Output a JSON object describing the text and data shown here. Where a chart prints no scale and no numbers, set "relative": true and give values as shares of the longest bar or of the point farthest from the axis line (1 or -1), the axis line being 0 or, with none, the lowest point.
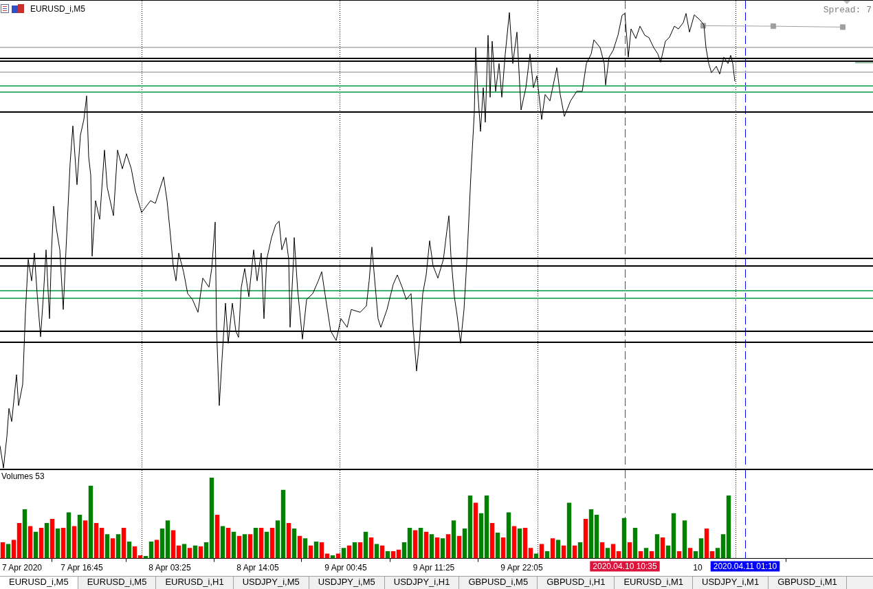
{
  "chart_data": [
    {
      "type": "line",
      "title": "EURUSD_i,M5",
      "relative": true,
      "xlim": [
        "2020-04-07T06:50",
        "2020-04-11T16:40"
      ],
      "tick_labels": false,
      "annotations": [
        "Spread: 7"
      ],
      "x": [
        "2020-04-07T06:50",
        "2020-04-07T07:15",
        "2020-04-07T07:40",
        "2020-04-07T07:55",
        "2020-04-07T08:15",
        "2020-04-07T08:50",
        "2020-04-07T09:05",
        "2020-04-07T09:35",
        "2020-04-07T09:55",
        "2020-04-07T10:15",
        "2020-04-07T10:40",
        "2020-04-07T11:00",
        "2020-04-07T11:20",
        "2020-04-07T11:45",
        "2020-04-07T12:05",
        "2020-04-07T12:25",
        "2020-04-07T12:50",
        "2020-04-07T13:05",
        "2020-04-07T13:20",
        "2020-04-07T13:40",
        "2020-04-07T14:05",
        "2020-04-07T14:30",
        "2020-04-07T14:50",
        "2020-04-07T15:20",
        "2020-04-07T15:40",
        "2020-04-07T16:10",
        "2020-04-07T16:35",
        "2020-04-07T17:00",
        "2020-04-07T17:20",
        "2020-04-07T17:35",
        "2020-04-07T17:50",
        "2020-04-07T18:00",
        "2020-04-07T18:25",
        "2020-04-07T18:55",
        "2020-04-07T19:30",
        "2020-04-07T19:50",
        "2020-04-07T20:35",
        "2020-04-07T21:05",
        "2020-04-07T21:40",
        "2020-04-07T22:10",
        "2020-04-07T22:45",
        "2020-04-07T23:15",
        "2020-04-08T00:00",
        "2020-04-08T00:35",
        "2020-04-08T01:05",
        "2020-04-08T01:40",
        "2020-04-08T02:40",
        "2020-04-08T03:05",
        "2020-04-08T03:25",
        "2020-04-08T03:50",
        "2020-04-08T04:10",
        "2020-04-08T04:30",
        "2020-04-08T05:05",
        "2020-04-08T05:35",
        "2020-04-08T06:10",
        "2020-04-08T06:50",
        "2020-04-08T07:25",
        "2020-04-08T08:10",
        "2020-04-08T08:30",
        "2020-04-08T08:55",
        "2020-04-08T09:05",
        "2020-04-08T09:25",
        "2020-04-08T09:45",
        "2020-04-08T10:10",
        "2020-04-08T10:30",
        "2020-04-08T11:00",
        "2020-04-08T11:25",
        "2020-04-08T11:45",
        "2020-04-08T12:05",
        "2020-04-08T12:30",
        "2020-04-08T13:00",
        "2020-04-08T13:35",
        "2020-04-08T14:00",
        "2020-04-08T14:30",
        "2020-04-08T14:50",
        "2020-04-08T15:10",
        "2020-04-08T15:45",
        "2020-04-08T16:15",
        "2020-04-08T16:40",
        "2020-04-08T17:00",
        "2020-04-08T17:30",
        "2020-04-08T17:50",
        "2020-04-08T18:00",
        "2020-04-08T18:25",
        "2020-04-08T18:30",
        "2020-04-08T18:55",
        "2020-04-08T19:30",
        "2020-04-08T20:00",
        "2020-04-08T20:45",
        "2020-04-08T21:25",
        "2020-04-08T21:50",
        "2020-04-08T22:20",
        "2020-04-08T22:55",
        "2020-04-08T23:35",
        "2020-04-09T00:10",
        "2020-04-09T00:55",
        "2020-04-09T01:25",
        "2020-04-09T02:30",
        "2020-04-09T03:15",
        "2020-04-09T03:35",
        "2020-04-09T03:55",
        "2020-04-09T04:20",
        "2020-04-09T04:40",
        "2020-04-09T05:00",
        "2020-04-09T05:45",
        "2020-04-09T06:30",
        "2020-04-09T07:00",
        "2020-04-09T07:35",
        "2020-04-09T08:05",
        "2020-04-09T08:40",
        "2020-04-09T08:55",
        "2020-04-09T09:20",
        "2020-04-09T09:40",
        "2020-04-09T10:05",
        "2020-04-09T10:30",
        "2020-04-09T10:55",
        "2020-04-09T11:20",
        "2020-04-09T11:55",
        "2020-04-09T12:35",
        "2020-04-09T13:00",
        "2020-04-09T13:15",
        "2020-04-09T13:30",
        "2020-04-09T13:55",
        "2020-04-09T14:15",
        "2020-04-09T14:40",
        "2020-04-09T15:05",
        "2020-04-09T15:30",
        "2020-04-09T15:55",
        "2020-04-09T16:05",
        "2020-04-09T16:20",
        "2020-04-09T16:30",
        "2020-04-09T16:45",
        "2020-04-09T17:05",
        "2020-04-09T17:25",
        "2020-04-09T17:40",
        "2020-04-09T18:00",
        "2020-04-09T18:15",
        "2020-04-09T18:30",
        "2020-04-09T18:55",
        "2020-04-09T19:20",
        "2020-04-09T19:40",
        "2020-04-09T20:05",
        "2020-04-09T20:35",
        "2020-04-09T21:00",
        "2020-04-09T21:30",
        "2020-04-09T22:00",
        "2020-04-09T22:35",
        "2020-04-09T23:05",
        "2020-04-09T23:30",
        "2020-04-09T23:55",
        "2020-04-10T00:30",
        "2020-04-10T00:55",
        "2020-04-10T01:30",
        "2020-04-10T01:50",
        "2020-04-10T02:20",
        "2020-04-10T02:45",
        "2020-04-10T03:15",
        "2020-04-10T04:00",
        "2020-04-10T04:45",
        "2020-04-10T05:25",
        "2020-04-10T05:55",
        "2020-04-10T06:30",
        "2020-04-10T06:50",
        "2020-04-10T07:35",
        "2020-04-10T08:05",
        "2020-04-10T08:15",
        "2020-04-10T08:40",
        "2020-04-10T09:10",
        "2020-04-10T09:45",
        "2020-04-10T10:15",
        "2020-04-10T10:35",
        "2020-04-10T11:00",
        "2020-04-10T11:20",
        "2020-04-10T11:55",
        "2020-04-10T12:25",
        "2020-04-10T13:00",
        "2020-04-10T13:30",
        "2020-04-10T14:05",
        "2020-04-10T14:35",
        "2020-04-10T14:55",
        "2020-04-10T15:30",
        "2020-04-10T16:00",
        "2020-04-10T16:35",
        "2020-04-10T17:05",
        "2020-04-10T17:40",
        "2020-04-10T18:00",
        "2020-04-10T18:25",
        "2020-04-10T19:00",
        "2020-04-10T19:40",
        "2020-04-10T20:10",
        "2020-04-10T20:25",
        "2020-04-10T20:45",
        "2020-04-10T21:05",
        "2020-04-10T21:40",
        "2020-04-10T22:05",
        "2020-04-10T22:35",
        "2020-04-10T23:05",
        "2020-04-10T23:25",
        "2020-04-10T23:40",
        "2020-04-10T23:55"
      ],
      "series": [
        {
          "color": "#000000",
          "values": [
            0.049,
            0,
            0.069,
            0.131,
            0.102,
            0.205,
            0.137,
            0.184,
            0.342,
            0.458,
            0.411,
            0.472,
            0.383,
            0.288,
            0.376,
            0.479,
            0.328,
            0.479,
            0.575,
            0.526,
            0.479,
            0.348,
            0.479,
            0.669,
            0.751,
            0.622,
            0.731,
            0.765,
            0.817,
            0.683,
            0.643,
            0.465,
            0.587,
            0.546,
            0.698,
            0.616,
            0.554,
            0.698,
            0.657,
            0.69,
            0.657,
            0.608,
            0.561,
            0.575,
            0.587,
            0.581,
            0.639,
            0.587,
            0.526,
            0.444,
            0.411,
            0.472,
            0.431,
            0.383,
            0.37,
            0.342,
            0.417,
            0.397,
            0.438,
            0.54,
            0.309,
            0.137,
            0.239,
            0.362,
            0.274,
            0.362,
            0.301,
            0.287,
            0.397,
            0.438,
            0.376,
            0.479,
            0.411,
            0.472,
            0.328,
            0.458,
            0.506,
            0.534,
            0.542,
            0.479,
            0.506,
            0.458,
            0.309,
            0.458,
            0.506,
            0.391,
            0.283,
            0.37,
            0.383,
            0.411,
            0.431,
            0.37,
            0.301,
            0.28,
            0.328,
            0.309,
            0.348,
            0.342,
            0.356,
            0.411,
            0.485,
            0.397,
            0.328,
            0.309,
            0.348,
            0.403,
            0.424,
            0.397,
            0.37,
            0.383,
            0.309,
            0.213,
            0.274,
            0.383,
            0.424,
            0.499,
            0.444,
            0.417,
            0.458,
            0.52,
            0.554,
            0.465,
            0.376,
            0.335,
            0.274,
            0.348,
            0.479,
            0.643,
            0.698,
            0.78,
            0.923,
            0.827,
            0.739,
            0.835,
            0.759,
            0.95,
            0.814,
            0.937,
            0.827,
            0.888,
            0.814,
            0.909,
            1,
            0.888,
            0.957,
            0.786,
            0.835,
            0.909,
            0.835,
            0.861,
            0.765,
            0.82,
            0.806,
            0.835,
            0.879,
            0.82,
            0.772,
            0.806,
            0.827,
            0.827,
            0.888,
            0.909,
            0.94,
            0.923,
            0.888,
            0.841,
            0.902,
            0.917,
            0.95,
            0.994,
            0.998,
            0.902,
            0.964,
            0.943,
            0.97,
            0.95,
            0.945,
            0.923,
            0.909,
            0.891,
            0.937,
            0.946,
            0.97,
            0.964,
            0.978,
            0.998,
            0.957,
            0.995,
            0.984,
            0.973,
            0.923,
            0.888,
            0.868,
            0.882,
            0.865,
            0.902,
            0.888,
            0.906,
            0.888,
            0.849
          ]
        },
        {
          "color": "#a0a0a0",
          "marker": "square",
          "x": [
            "2020-04-10T20:05",
            "2020-04-11T04:35",
            "2020-04-11T13:00"
          ],
          "values": [
            0.971,
            0.97,
            0.968
          ]
        },
        {
          "color": "#207a48",
          "x": [
            "2020-04-11T14:30",
            "2020-04-11T16:40"
          ],
          "values": [
            0.89,
            0.89
          ]
        }
      ],
      "ref_lines": [
        {
          "axis": "x",
          "value": "2020-04-08T00:00",
          "color": "#000000",
          "line_style": "dotted"
        },
        {
          "axis": "x",
          "value": "2020-04-09T00:00",
          "color": "#000000",
          "line_style": "dotted"
        },
        {
          "axis": "x",
          "value": "2020-04-10T00:00",
          "color": "#000000",
          "line_style": "dotted"
        },
        {
          "axis": "x",
          "value": "2020-04-11T00:00",
          "color": "#000000",
          "line_style": "dotted"
        },
        {
          "axis": "x",
          "value": "2020-04-10T10:35",
          "color": "#dc143c",
          "line_style": "dashed"
        },
        {
          "axis": "x",
          "value": "2020-04-11T01:10",
          "color": "#0000ff",
          "line_style": "dashed"
        },
        {
          "axis": "y",
          "value": 0.924,
          "color": "#c0c0c0"
        },
        {
          "axis": "y",
          "value": 0.9,
          "color": "#000000"
        },
        {
          "axis": "y",
          "value": 0.893,
          "color": "#000000"
        },
        {
          "axis": "y",
          "value": 0.869,
          "color": "#c0c0c0"
        },
        {
          "axis": "y",
          "value": 0.839,
          "color": "#3cb371"
        },
        {
          "axis": "y",
          "value": 0.825,
          "color": "#3cb371"
        },
        {
          "axis": "y",
          "value": 0.782,
          "color": "#000000"
        },
        {
          "axis": "y",
          "value": 0.46,
          "color": "#000000"
        },
        {
          "axis": "y",
          "value": 0.444,
          "color": "#000000"
        },
        {
          "axis": "y",
          "value": 0.39,
          "color": "#3cb371"
        },
        {
          "axis": "y",
          "value": 0.372,
          "color": "#3cb371"
        },
        {
          "axis": "y",
          "value": 0.3,
          "color": "#000000"
        },
        {
          "axis": "y",
          "value": 0.276,
          "color": "#000000"
        }
      ]
    },
    {
      "type": "bar",
      "title": "Volumes 53",
      "relative": true,
      "xlim": [
        "2020-04-07T06:50",
        "2020-04-11T16:40"
      ],
      "tick_labels": "x",
      "xticks": [
        {
          "value": "2020-04-07T09:30",
          "label": "7 Apr 2020"
        },
        {
          "value": "2020-04-07T16:45",
          "label": "7 Apr 16:45"
        },
        {
          "value": "2020-04-08T03:25",
          "label": "8 Apr 03:25"
        },
        {
          "value": "2020-04-08T14:05",
          "label": "8 Apr 14:05"
        },
        {
          "value": "2020-04-09T00:45",
          "label": "9 Apr 00:45"
        },
        {
          "value": "2020-04-09T11:25",
          "label": "9 Apr 11:25"
        },
        {
          "value": "2020-04-09T22:05",
          "label": "9 Apr 22:05"
        },
        {
          "value": "2020-04-10T19:25",
          "label": "10"
        }
      ],
      "x": [
        "2020-04-07T07:10",
        "2020-04-07T07:50",
        "2020-04-07T08:30",
        "2020-04-07T09:10",
        "2020-04-07T09:50",
        "2020-04-07T10:30",
        "2020-04-07T11:10",
        "2020-04-07T11:50",
        "2020-04-07T12:30",
        "2020-04-07T13:10",
        "2020-04-07T13:50",
        "2020-04-07T14:30",
        "2020-04-07T15:10",
        "2020-04-07T15:50",
        "2020-04-07T16:30",
        "2020-04-07T17:10",
        "2020-04-07T17:50",
        "2020-04-07T18:30",
        "2020-04-07T19:10",
        "2020-04-07T19:50",
        "2020-04-07T20:30",
        "2020-04-07T21:10",
        "2020-04-07T21:50",
        "2020-04-07T22:30",
        "2020-04-07T23:10",
        "2020-04-07T23:50",
        "2020-04-08T00:30",
        "2020-04-08T01:10",
        "2020-04-08T01:50",
        "2020-04-08T02:30",
        "2020-04-08T03:10",
        "2020-04-08T03:50",
        "2020-04-08T04:30",
        "2020-04-08T05:10",
        "2020-04-08T05:50",
        "2020-04-08T06:30",
        "2020-04-08T07:10",
        "2020-04-08T07:50",
        "2020-04-08T08:30",
        "2020-04-08T09:10",
        "2020-04-08T09:50",
        "2020-04-08T10:30",
        "2020-04-08T11:10",
        "2020-04-08T11:50",
        "2020-04-08T12:30",
        "2020-04-08T13:10",
        "2020-04-08T13:50",
        "2020-04-08T14:30",
        "2020-04-08T15:10",
        "2020-04-08T15:50",
        "2020-04-08T16:30",
        "2020-04-08T17:10",
        "2020-04-08T17:50",
        "2020-04-08T18:30",
        "2020-04-08T19:10",
        "2020-04-08T19:50",
        "2020-04-08T20:30",
        "2020-04-08T21:10",
        "2020-04-08T21:50",
        "2020-04-08T22:30",
        "2020-04-08T23:10",
        "2020-04-08T23:50",
        "2020-04-09T00:30",
        "2020-04-09T01:10",
        "2020-04-09T01:50",
        "2020-04-09T02:30",
        "2020-04-09T03:10",
        "2020-04-09T03:50",
        "2020-04-09T04:30",
        "2020-04-09T05:10",
        "2020-04-09T05:50",
        "2020-04-09T06:30",
        "2020-04-09T07:10",
        "2020-04-09T07:50",
        "2020-04-09T08:30",
        "2020-04-09T09:10",
        "2020-04-09T09:50",
        "2020-04-09T10:30",
        "2020-04-09T11:10",
        "2020-04-09T11:50",
        "2020-04-09T12:30",
        "2020-04-09T13:10",
        "2020-04-09T13:50",
        "2020-04-09T14:30",
        "2020-04-09T15:10",
        "2020-04-09T15:50",
        "2020-04-09T16:30",
        "2020-04-09T17:10",
        "2020-04-09T17:50",
        "2020-04-09T18:30",
        "2020-04-09T19:10",
        "2020-04-09T19:50",
        "2020-04-09T20:30",
        "2020-04-09T21:10",
        "2020-04-09T21:50",
        "2020-04-09T22:30",
        "2020-04-09T23:10",
        "2020-04-09T23:50",
        "2020-04-10T00:30",
        "2020-04-10T01:10",
        "2020-04-10T01:50",
        "2020-04-10T02:30",
        "2020-04-10T03:10",
        "2020-04-10T03:50",
        "2020-04-10T04:30",
        "2020-04-10T05:10",
        "2020-04-10T05:50",
        "2020-04-10T06:30",
        "2020-04-10T07:10",
        "2020-04-10T07:50",
        "2020-04-10T08:30",
        "2020-04-10T09:10",
        "2020-04-10T09:50",
        "2020-04-10T10:30",
        "2020-04-10T11:10",
        "2020-04-10T11:50",
        "2020-04-10T12:30",
        "2020-04-10T13:10",
        "2020-04-10T13:50",
        "2020-04-10T14:30",
        "2020-04-10T15:10",
        "2020-04-10T15:50",
        "2020-04-10T16:30",
        "2020-04-10T17:10",
        "2020-04-10T17:50",
        "2020-04-10T18:30",
        "2020-04-10T19:10",
        "2020-04-10T19:50",
        "2020-04-10T20:30",
        "2020-04-10T21:10",
        "2020-04-10T21:50",
        "2020-04-10T22:30",
        "2020-04-10T23:10"
      ],
      "values": [
        0.2,
        0.18,
        0.23,
        0.44,
        0.61,
        0.4,
        0.33,
        0.38,
        0.44,
        0.49,
        0.37,
        0.38,
        0.57,
        0.4,
        0.54,
        0.47,
        0.9,
        0.44,
        0.38,
        0.3,
        0.25,
        0.3,
        0.38,
        0.21,
        0.15,
        0.04,
        0.03,
        0.21,
        0.23,
        0.37,
        0.47,
        0.35,
        0.16,
        0.18,
        0.13,
        0.16,
        0.15,
        0.2,
        1,
        0.54,
        0.4,
        0.38,
        0.33,
        0.28,
        0.3,
        0.3,
        0.38,
        0.38,
        0.33,
        0.38,
        0.47,
        0.85,
        0.44,
        0.37,
        0.28,
        0.25,
        0.16,
        0.21,
        0.2,
        0.06,
        0.04,
        0.06,
        0.13,
        0.16,
        0.2,
        0.2,
        0.33,
        0.26,
        0.18,
        0.16,
        0.09,
        0.09,
        0.11,
        0.2,
        0.38,
        0.35,
        0.38,
        0.33,
        0.3,
        0.26,
        0.25,
        0.3,
        0.47,
        0.28,
        0.37,
        0.78,
        0.69,
        0.56,
        0.78,
        0.44,
        0.32,
        0.26,
        0.57,
        0.4,
        0.37,
        0.38,
        0.13,
        0.06,
        0.18,
        0.09,
        0.25,
        0.23,
        0.16,
        0.69,
        0.16,
        0.2,
        0.49,
        0.61,
        0.54,
        0.2,
        0.13,
        0.18,
        0.09,
        0.5,
        0.2,
        0.38,
        0.09,
        0.13,
        0.09,
        0.3,
        0.26,
        0.16,
        0.56,
        0.09,
        0.47,
        0.13,
        0.09,
        0.25,
        0.37,
        0.09,
        0.13,
        0.3,
        0.78
      ],
      "colors": [
        "#ff0000",
        "#008000",
        "#ff0000",
        "#ff0000",
        "#008000",
        "#ff0000",
        "#008000",
        "#ff0000",
        "#008000",
        "#ff0000",
        "#008000",
        "#ff0000",
        "#008000",
        "#ff0000",
        "#008000",
        "#ff0000",
        "#008000",
        "#ff0000",
        "#ff0000",
        "#008000",
        "#ff0000",
        "#008000",
        "#ff0000",
        "#008000",
        "#ff0000",
        "#ff0000",
        "#008000",
        "#008000",
        "#ff0000",
        "#008000",
        "#008000",
        "#ff0000",
        "#ff0000",
        "#008000",
        "#ff0000",
        "#008000",
        "#ff0000",
        "#008000",
        "#008000",
        "#ff0000",
        "#008000",
        "#ff0000",
        "#008000",
        "#ff0000",
        "#008000",
        "#ff0000",
        "#008000",
        "#ff0000",
        "#008000",
        "#ff0000",
        "#008000",
        "#008000",
        "#ff0000",
        "#008000",
        "#ff0000",
        "#008000",
        "#ff0000",
        "#008000",
        "#ff0000",
        "#ff0000",
        "#008000",
        "#ff0000",
        "#008000",
        "#ff0000",
        "#008000",
        "#ff0000",
        "#008000",
        "#ff0000",
        "#008000",
        "#ff0000",
        "#008000",
        "#ff0000",
        "#ff0000",
        "#008000",
        "#008000",
        "#ff0000",
        "#008000",
        "#ff0000",
        "#008000",
        "#ff0000",
        "#008000",
        "#ff0000",
        "#008000",
        "#ff0000",
        "#008000",
        "#008000",
        "#ff0000",
        "#008000",
        "#008000",
        "#ff0000",
        "#008000",
        "#ff0000",
        "#008000",
        "#ff0000",
        "#008000",
        "#ff0000",
        "#ff0000",
        "#008000",
        "#ff0000",
        "#008000",
        "#ff0000",
        "#008000",
        "#ff0000",
        "#008000",
        "#ff0000",
        "#008000",
        "#ff0000",
        "#008000",
        "#008000",
        "#ff0000",
        "#008000",
        "#ff0000",
        "#ff0000",
        "#008000",
        "#ff0000",
        "#008000",
        "#ff0000",
        "#008000",
        "#ff0000",
        "#008000",
        "#ff0000",
        "#008000",
        "#008000",
        "#ff0000",
        "#008000",
        "#ff0000",
        "#008000",
        "#008000",
        "#ff0000",
        "#ff0000",
        "#008000",
        "#008000",
        "#008000"
      ],
      "ref_lines": [
        {
          "axis": "x",
          "value": "2020-04-08T00:00",
          "color": "#000000",
          "line_style": "dotted"
        },
        {
          "axis": "x",
          "value": "2020-04-09T00:00",
          "color": "#000000",
          "line_style": "dotted"
        },
        {
          "axis": "x",
          "value": "2020-04-10T00:00",
          "color": "#000000",
          "line_style": "dotted"
        },
        {
          "axis": "x",
          "value": "2020-04-11T00:00",
          "color": "#000000",
          "line_style": "dotted"
        },
        {
          "axis": "x",
          "value": "2020-04-10T10:35",
          "color": "#dc143c",
          "line_style": "dashed",
          "label": "2020.04.10 10:35"
        },
        {
          "axis": "x",
          "value": "2020-04-11T01:10",
          "color": "#0000ff",
          "line_style": "dashed",
          "label": "2020.04.11 01:10"
        }
      ],
      "annotations": [
        "EURUSD_i,M5",
        "EURUSD_i,M5",
        "EURUSD_i,H1",
        "USDJPY_i,M5",
        "USDJPY_i,M5",
        "USDJPY_i,H1",
        "GBPUSD_i,M5",
        "GBPUSD_i,H1",
        "EURUSD_i,M1",
        "USDJPY_i,M1",
        "GBPUSD_i,M1"
      ]
    }
  ]
}
